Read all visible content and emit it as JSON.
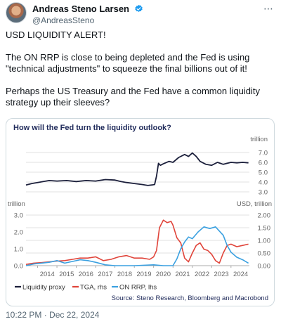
{
  "tweet": {
    "author": {
      "display_name": "Andreas Steno Larsen",
      "handle": "@AndreasSteno"
    },
    "more_icon": "ellipsis-icon",
    "paragraphs": [
      "USD LIQUIDITY ALERT!",
      "The ON RRP is close to being depleted and the Fed is using \"technical adjustments\" to squeeze the final billions out of it!",
      "Perhaps the US Treasury and the Fed have a common liquidity strategy up their sleeves?"
    ],
    "timestamp": "10:22 PM · Dec 22, 2024"
  },
  "chart_data": {
    "type": "line",
    "title": "How will the Fed turn the liquidity outlook?",
    "source": "Source: Steno Research, Bloomberg and Macrobond",
    "colors": {
      "title": "#1f2a5a",
      "proxy": "#1b1f3b",
      "tga": "#e0443a",
      "onrrp": "#3aa0e0",
      "grid": "#d9d9d9",
      "tick": "#666666"
    },
    "x_ticks": [
      "2014",
      "2015",
      "2016",
      "2017",
      "2018",
      "2019",
      "2020",
      "2021",
      "2022",
      "2023",
      "2024"
    ],
    "top_panel": {
      "unit_label": "trillion",
      "ylim": [
        3.0,
        7.0
      ],
      "y_ticks": [
        "7.0",
        "6.0",
        "5.0",
        "4.0",
        "3.0"
      ],
      "series": [
        {
          "name": "Liquidity proxy",
          "x": [
            2013.4,
            2013.7,
            2014.0,
            2014.3,
            2014.6,
            2015.0,
            2015.5,
            2016.0,
            2016.5,
            2017.0,
            2017.5,
            2018.0,
            2018.3,
            2018.6,
            2019.0,
            2019.4,
            2019.7,
            2019.9,
            2020.05,
            2020.15,
            2020.25,
            2020.35,
            2020.5,
            2020.8,
            2021.0,
            2021.3,
            2021.6,
            2021.8,
            2022.0,
            2022.2,
            2022.4,
            2022.7,
            2023.0,
            2023.3,
            2023.6,
            2024.0,
            2024.3,
            2024.6,
            2024.9
          ],
          "values": [
            3.7,
            3.85,
            3.95,
            4.05,
            4.15,
            4.1,
            4.15,
            4.05,
            4.15,
            4.1,
            4.25,
            4.2,
            4.05,
            3.95,
            3.85,
            3.75,
            3.65,
            3.7,
            3.75,
            4.6,
            5.9,
            5.7,
            5.85,
            6.1,
            6.0,
            6.5,
            6.8,
            6.6,
            6.95,
            6.6,
            6.1,
            5.8,
            5.7,
            6.0,
            5.8,
            6.0,
            5.95,
            6.0,
            5.95
          ]
        }
      ]
    },
    "bottom_panel": {
      "left_unit_label": "trillion",
      "right_unit_label": "USD, trillion",
      "left_ylim": [
        0,
        3
      ],
      "left_ticks": [
        "3.0",
        "2.0",
        "1.0",
        "0.0"
      ],
      "right_ylim": [
        0,
        2
      ],
      "right_ticks": [
        "2.00",
        "1.50",
        "1.00",
        "0.50",
        "0.00"
      ],
      "series": [
        {
          "name": "TGA, rhs",
          "axis": "right",
          "x": [
            2013.4,
            2013.8,
            2014.2,
            2014.6,
            2015.0,
            2015.4,
            2015.8,
            2016.2,
            2016.6,
            2017.0,
            2017.4,
            2017.8,
            2018.2,
            2018.6,
            2019.0,
            2019.4,
            2019.8,
            2020.0,
            2020.15,
            2020.3,
            2020.5,
            2020.7,
            2020.9,
            2021.0,
            2021.2,
            2021.4,
            2021.6,
            2021.8,
            2022.0,
            2022.2,
            2022.4,
            2022.6,
            2022.8,
            2023.0,
            2023.2,
            2023.4,
            2023.6,
            2023.8,
            2024.0,
            2024.3,
            2024.6,
            2024.9
          ],
          "values": [
            0.05,
            0.1,
            0.12,
            0.15,
            0.18,
            0.2,
            0.25,
            0.3,
            0.3,
            0.35,
            0.2,
            0.25,
            0.35,
            0.4,
            0.3,
            0.3,
            0.25,
            0.35,
            0.6,
            1.5,
            1.8,
            1.7,
            1.75,
            1.6,
            1.1,
            0.9,
            0.3,
            0.15,
            0.5,
            0.8,
            0.9,
            0.65,
            0.6,
            0.45,
            0.2,
            0.1,
            0.5,
            0.8,
            0.85,
            0.75,
            0.8,
            0.85
          ]
        },
        {
          "name": "ON RRP, lhs",
          "axis": "left",
          "x": [
            2013.4,
            2013.8,
            2014.2,
            2014.6,
            2015.0,
            2015.4,
            2015.8,
            2016.2,
            2016.6,
            2017.0,
            2017.5,
            2018.0,
            2019.0,
            2020.0,
            2020.5,
            2021.0,
            2021.2,
            2021.4,
            2021.6,
            2021.8,
            2022.0,
            2022.3,
            2022.6,
            2022.9,
            2023.2,
            2023.4,
            2023.6,
            2023.8,
            2024.0,
            2024.3,
            2024.6,
            2024.9
          ],
          "values": [
            0.0,
            0.1,
            0.15,
            0.2,
            0.3,
            0.15,
            0.25,
            0.35,
            0.3,
            0.2,
            0.05,
            0.0,
            0.0,
            0.05,
            0.0,
            0.0,
            0.4,
            1.0,
            1.4,
            1.7,
            1.6,
            2.0,
            2.3,
            2.2,
            2.3,
            2.05,
            1.8,
            1.2,
            0.8,
            0.5,
            0.35,
            0.15
          ]
        }
      ]
    },
    "legend": [
      "Liquidity proxy",
      "TGA, rhs",
      "ON RRP, lhs"
    ]
  }
}
